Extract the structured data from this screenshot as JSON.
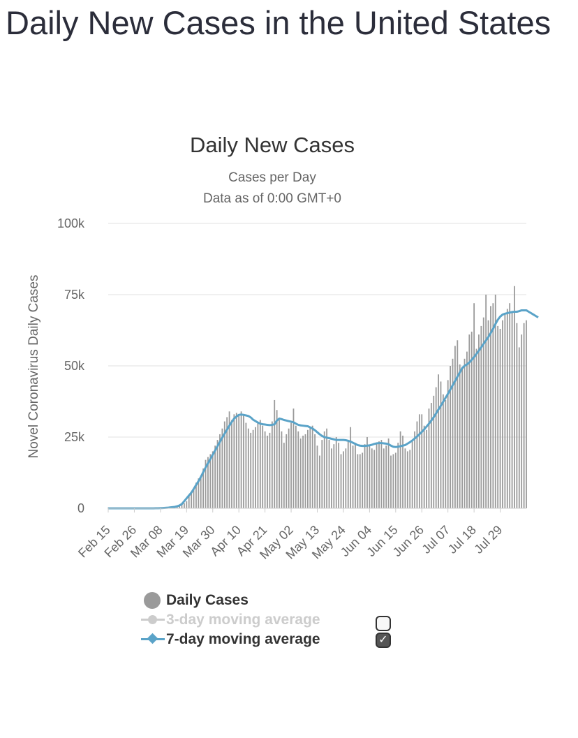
{
  "page": {
    "title": "Daily New Cases in the United States"
  },
  "colors": {
    "bars": "#9a9a9a",
    "ma7": "#5aa3c8",
    "ma3": "#cccccc",
    "grid": "#e0e0e0",
    "text": "#333333"
  },
  "legend": {
    "items": [
      {
        "label": "Daily Cases",
        "symbol": "dot",
        "checkbox": null
      },
      {
        "label": "3-day moving average",
        "symbol": "line-dot",
        "checkbox": "unchecked",
        "check_glyph": ""
      },
      {
        "label": "7-day moving average",
        "symbol": "line-diamond",
        "checkbox": "checked",
        "check_glyph": "✓"
      }
    ]
  },
  "chart_data": {
    "type": "bar",
    "title": "Daily New Cases",
    "subtitle": "Cases per Day",
    "subtitle2": "Data as of 0:00 GMT+0",
    "ylabel": "Novel Coronavirus Daily Cases",
    "xlabel": "",
    "ylim": [
      0,
      100000
    ],
    "yticks": [
      0,
      25000,
      50000,
      75000,
      100000
    ],
    "ytick_labels": [
      "0",
      "25k",
      "50k",
      "75k",
      "100k"
    ],
    "x_tick_labels": [
      "Feb 15",
      "Feb 26",
      "Mar 08",
      "Mar 19",
      "Mar 30",
      "Apr 10",
      "Apr 21",
      "May 02",
      "May 13",
      "May 24",
      "Jun 04",
      "Jun 15",
      "Jun 26",
      "Jul 07",
      "Jul 18",
      "Jul 29"
    ],
    "x_tick_every": 11,
    "categories_start": "Feb 15",
    "series": [
      {
        "name": "Daily Cases",
        "type": "bar",
        "values": [
          0,
          0,
          0,
          0,
          0,
          0,
          0,
          0,
          0,
          0,
          0,
          0,
          0,
          0,
          0,
          0,
          0,
          0,
          0,
          0,
          20,
          30,
          60,
          100,
          150,
          200,
          300,
          400,
          500,
          700,
          1000,
          1200,
          1800,
          2500,
          4500,
          5500,
          7000,
          9000,
          10500,
          11500,
          14000,
          17000,
          18000,
          19000,
          20000,
          22000,
          24000,
          26000,
          28000,
          30500,
          32000,
          34000,
          31000,
          33000,
          33500,
          33000,
          34000,
          33000,
          30000,
          28000,
          26500,
          27500,
          28500,
          30000,
          31000,
          29000,
          27000,
          25500,
          26500,
          30500,
          38000,
          34500,
          31000,
          27000,
          23000,
          26000,
          28000,
          30000,
          35000,
          29000,
          27000,
          24500,
          25500,
          26000,
          27500,
          28500,
          29000,
          26000,
          22000,
          18500,
          24000,
          27000,
          28000,
          24000,
          21000,
          22500,
          25000,
          23000,
          19000,
          20000,
          21000,
          24000,
          28500,
          22000,
          23000,
          19000,
          19000,
          19500,
          22500,
          25000,
          22000,
          21000,
          20500,
          22500,
          23500,
          24000,
          21000,
          22000,
          24500,
          18500,
          19000,
          19500,
          23000,
          27000,
          25500,
          21000,
          20000,
          20500,
          24000,
          27000,
          30500,
          33000,
          33000,
          29000,
          27500,
          35000,
          37000,
          39500,
          42500,
          47000,
          44500,
          40000,
          38000,
          45000,
          50000,
          52500,
          57000,
          59000,
          50500,
          49000,
          52500,
          55000,
          61000,
          62000,
          72000,
          56000,
          61000,
          64000,
          67000,
          75000,
          66000,
          71000,
          72000,
          75000,
          64000,
          63000,
          66000,
          68000,
          70000,
          72000,
          69000,
          78000,
          65000,
          56500,
          61000,
          65000,
          66000
        ]
      },
      {
        "name": "7-day moving average",
        "type": "line",
        "values": [
          0,
          0,
          0,
          0,
          0,
          0,
          0,
          0,
          0,
          0,
          0,
          0,
          0,
          0,
          0,
          0,
          0,
          0,
          0,
          0,
          20,
          30,
          60,
          100,
          150,
          200,
          300,
          400,
          500,
          700,
          1000,
          1500,
          2500,
          3500,
          4500,
          5500,
          6800,
          8200,
          9500,
          11000,
          12700,
          14300,
          15800,
          17300,
          18800,
          20300,
          21800,
          23300,
          24800,
          26200,
          27600,
          29000,
          30300,
          31500,
          32200,
          32800,
          32900,
          32800,
          32600,
          32400,
          31900,
          31100,
          30600,
          30100,
          29700,
          29500,
          29400,
          29300,
          29200,
          29300,
          29500,
          30800,
          31500,
          31300,
          31000,
          30800,
          30600,
          30400,
          30200,
          29700,
          29300,
          29100,
          29000,
          28900,
          28800,
          28400,
          28000,
          27400,
          26700,
          26000,
          25400,
          25000,
          24800,
          24600,
          24400,
          24200,
          24000,
          24000,
          24000,
          24000,
          23900,
          23700,
          23400,
          23000,
          22600,
          22200,
          22000,
          21900,
          21900,
          22000,
          22100,
          22300,
          22600,
          22800,
          22900,
          22900,
          22800,
          22700,
          22500,
          22000,
          21600,
          21500,
          21600,
          21800,
          22000,
          22200,
          22700,
          23200,
          23800,
          24500,
          25200,
          26000,
          26800,
          27700,
          28700,
          29700,
          30800,
          32000,
          33300,
          34700,
          36000,
          37400,
          38800,
          40200,
          41700,
          43200,
          44700,
          46200,
          47700,
          49200,
          50000,
          50500,
          51200,
          52100,
          53100,
          54200,
          55300,
          56500,
          57700,
          58900,
          60100,
          61500,
          63000,
          64700,
          66200,
          67300,
          68000,
          68300,
          68500,
          68700,
          68900,
          69000,
          69000,
          69200,
          69500,
          69500,
          69500,
          69000,
          68500,
          68000,
          67500,
          67000
        ]
      }
    ]
  }
}
